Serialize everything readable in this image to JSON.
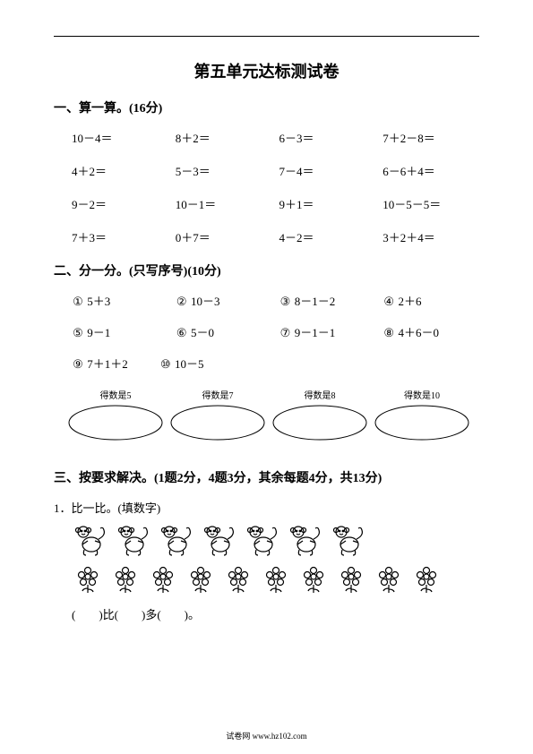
{
  "title": "第五单元达标测试卷",
  "section1": {
    "header": "一、算一算。(16分)",
    "rows": [
      [
        "10－4＝",
        "8＋2＝",
        "6－3＝",
        "7＋2－8＝"
      ],
      [
        "4＋2＝",
        "5－3＝",
        "7－4＝",
        "6－6＋4＝"
      ],
      [
        "9－2＝",
        "10－1＝",
        "9＋1＝",
        "10－5－5＝"
      ],
      [
        "7＋3＝",
        "0＋7＝",
        "4－2＝",
        "3＋2＋4＝"
      ]
    ]
  },
  "section2": {
    "header": "二、分一分。(只写序号)(10分)",
    "items": [
      {
        "num": "①",
        "expr": "5＋3"
      },
      {
        "num": "②",
        "expr": "10－3"
      },
      {
        "num": "③",
        "expr": "8－1－2"
      },
      {
        "num": "④",
        "expr": "2＋6"
      },
      {
        "num": "⑤",
        "expr": "9－1"
      },
      {
        "num": "⑥",
        "expr": "5－0"
      },
      {
        "num": "⑦",
        "expr": "9－1－1"
      },
      {
        "num": "⑧",
        "expr": "4＋6－0"
      },
      {
        "num": "⑨",
        "expr": "7＋1＋2"
      },
      {
        "num": "⑩",
        "expr": "10－5"
      }
    ],
    "ovals": [
      {
        "label": "得数是5"
      },
      {
        "label": "得数是7"
      },
      {
        "label": "得数是8"
      },
      {
        "label": "得数是10"
      }
    ]
  },
  "section3": {
    "header": "三、按要求解决。(1题2分，4题3分，其余每题4分，共13分)",
    "q1": "1．比一比。(填数字)",
    "monkey_count": 7,
    "flower_count": 10,
    "fill_text": "(　　)比(　　)多(　　)。"
  },
  "footer": "试卷网  www.hz102.com",
  "colors": {
    "text": "#000000",
    "bg": "#ffffff"
  }
}
